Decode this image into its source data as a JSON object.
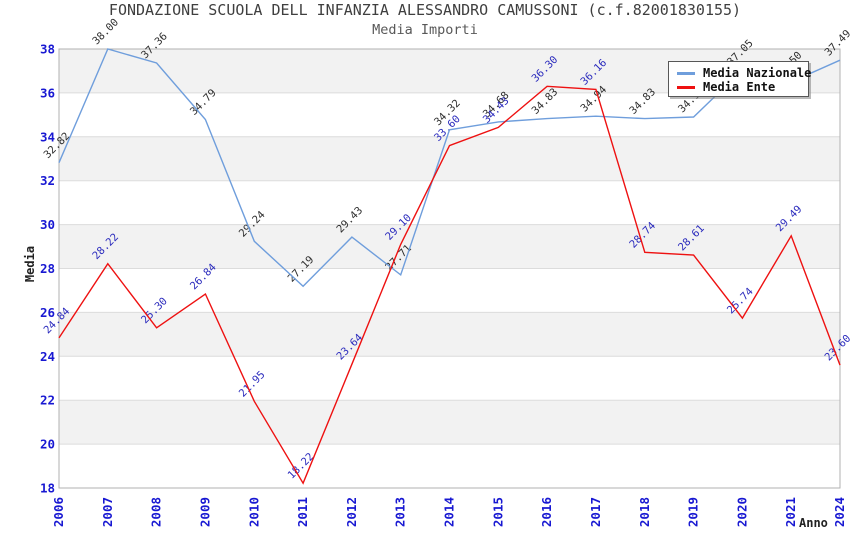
{
  "header": {
    "title": "FONDAZIONE SCUOLA DELL INFANZIA ALESSANDRO CAMUSSONI (c.f.82001830155)",
    "subtitle": "Media Importi"
  },
  "chart_data": {
    "type": "line",
    "title": "FONDAZIONE SCUOLA DELL INFANZIA ALESSANDRO CAMUSSONI (c.f.82001830155)",
    "subtitle": "Media Importi",
    "xlabel": "Anno",
    "ylabel": "Media",
    "x_categories": [
      "2006",
      "2007",
      "2008",
      "2009",
      "2010",
      "2011",
      "2012",
      "2013",
      "2014",
      "2015",
      "2016",
      "2017",
      "2018",
      "2019",
      "2020",
      "2021",
      "2024"
    ],
    "ylim": [
      18,
      38
    ],
    "ytick_step": 2,
    "ytick_labels": [
      "18",
      "20",
      "22",
      "24",
      "26",
      "28",
      "30",
      "32",
      "34",
      "36",
      "38"
    ],
    "legend_position": "top-right",
    "grid": "horizontal gridlines every 2 units with alternating white/gray bands",
    "band_color": "#f2f2f2",
    "grid_color": "#dcdcdc",
    "plot_border_color": "#b2b2b2",
    "axis_tick_color": "#1818d2",
    "series": [
      {
        "name": "Media Nazionale",
        "color": "#6f9edc",
        "label_color": "#2e2e2e",
        "values": [
          32.82,
          38.0,
          37.36,
          34.79,
          29.24,
          27.19,
          29.43,
          27.71,
          34.32,
          34.68,
          34.83,
          34.94,
          34.83,
          34.9,
          37.05,
          36.5,
          37.49
        ],
        "labels": [
          "32.82",
          "38.00",
          "37.36",
          "34.79",
          "29.24",
          "27.19",
          "29.43",
          "27.71",
          "34.32",
          "34.68",
          "34.83",
          "34.94",
          "34.83",
          "34.90",
          "37.05",
          "36.50",
          "37.49"
        ],
        "note": "2019 label partially and 2021 label fully covered by the legend box in the screenshot; those two values are estimated from line position"
      },
      {
        "name": "Media Ente",
        "color": "#ee1111",
        "label_color": "#2b2bbd",
        "values": [
          24.84,
          28.22,
          25.3,
          26.84,
          21.95,
          18.22,
          23.64,
          29.1,
          33.6,
          34.43,
          36.3,
          36.16,
          28.74,
          28.61,
          25.74,
          29.49,
          23.6
        ],
        "labels": [
          "24.84",
          "28.22",
          "25.30",
          "26.84",
          "21.95",
          "18.22",
          "23.64",
          "29.10",
          "33.60",
          "34.43",
          "36.30",
          "36.16",
          "28.74",
          "28.61",
          "25.74",
          "29.49",
          "23.60"
        ]
      }
    ]
  }
}
